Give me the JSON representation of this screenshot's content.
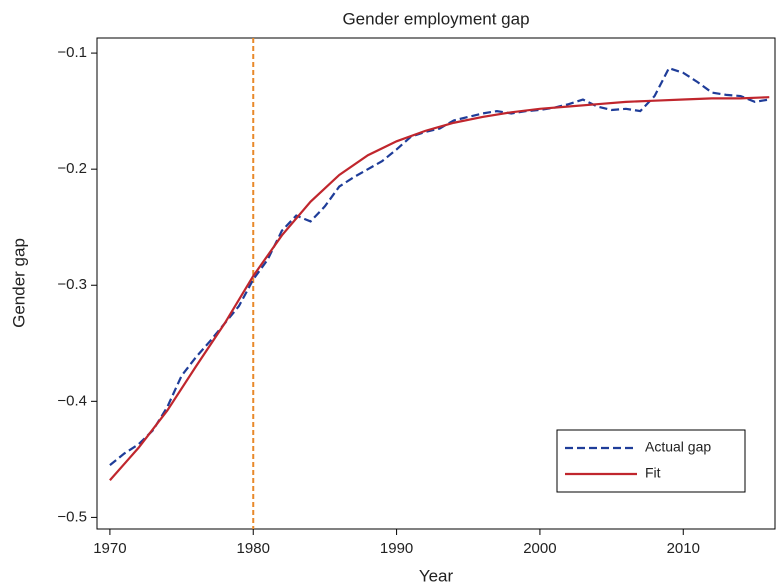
{
  "chart_data": {
    "type": "line",
    "title": "Gender employment gap",
    "x_label": "Year",
    "y_label": "Gender gap",
    "xlim": [
      1969.1,
      2016.4
    ],
    "ylim": [
      -0.51,
      -0.087
    ],
    "xticks": [
      1970,
      1980,
      1990,
      2000,
      2010
    ],
    "yticks": [
      {
        "value": -0.5,
        "label": "−0.5"
      },
      {
        "value": -0.4,
        "label": "−0.4"
      },
      {
        "value": -0.3,
        "label": "−0.3"
      },
      {
        "value": -0.2,
        "label": "−0.2"
      },
      {
        "value": -0.1,
        "label": "−0.1"
      }
    ],
    "grid": false,
    "legend": "lower right",
    "vline": {
      "x": 1980,
      "color": "#e8892a"
    },
    "series": [
      {
        "name": "Actual gap",
        "color": "#1f3d99",
        "style": "dashed",
        "x": [
          1970,
          1971,
          1972,
          1973,
          1974,
          1975,
          1976,
          1977,
          1978,
          1979,
          1980,
          1981,
          1982,
          1983,
          1984,
          1985,
          1986,
          1987,
          1988,
          1989,
          1990,
          1991,
          1992,
          1993,
          1994,
          1995,
          1996,
          1997,
          1998,
          1999,
          2000,
          2001,
          2002,
          2003,
          2004,
          2005,
          2006,
          2007,
          2008,
          2009,
          2010,
          2011,
          2012,
          2013,
          2014,
          2015,
          2016
        ],
        "values": [
          -0.455,
          -0.445,
          -0.437,
          -0.425,
          -0.405,
          -0.378,
          -0.362,
          -0.348,
          -0.333,
          -0.318,
          -0.295,
          -0.278,
          -0.253,
          -0.24,
          -0.245,
          -0.232,
          -0.215,
          -0.207,
          -0.2,
          -0.193,
          -0.183,
          -0.172,
          -0.168,
          -0.165,
          -0.158,
          -0.155,
          -0.152,
          -0.15,
          -0.152,
          -0.15,
          -0.149,
          -0.147,
          -0.144,
          -0.14,
          -0.146,
          -0.149,
          -0.148,
          -0.15,
          -0.137,
          -0.113,
          -0.117,
          -0.125,
          -0.134,
          -0.136,
          -0.137,
          -0.142,
          -0.14
        ]
      },
      {
        "name": "Fit",
        "color": "#c0262d",
        "style": "solid",
        "x": [
          1970,
          1972,
          1974,
          1976,
          1978,
          1980,
          1982,
          1984,
          1986,
          1988,
          1990,
          1992,
          1994,
          1996,
          1998,
          2000,
          2002,
          2004,
          2006,
          2008,
          2010,
          2012,
          2014,
          2016
        ],
        "values": [
          -0.468,
          -0.44,
          -0.408,
          -0.37,
          -0.333,
          -0.292,
          -0.257,
          -0.228,
          -0.205,
          -0.188,
          -0.176,
          -0.167,
          -0.16,
          -0.155,
          -0.151,
          -0.148,
          -0.146,
          -0.144,
          -0.142,
          -0.141,
          -0.14,
          -0.139,
          -0.139,
          -0.138
        ]
      }
    ]
  }
}
